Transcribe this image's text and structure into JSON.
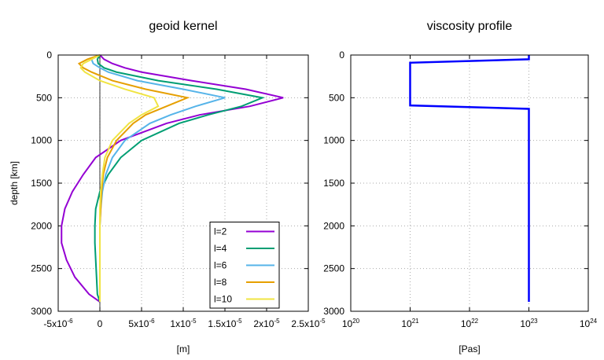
{
  "chart_data": [
    {
      "type": "line",
      "title": "geoid kernel",
      "xlabel": "[m]",
      "ylabel": "depth [km]",
      "y": [
        0,
        50,
        100,
        150,
        200,
        300,
        400,
        500,
        600,
        700,
        800,
        1000,
        1200,
        1400,
        1600,
        1800,
        2000,
        2200,
        2400,
        2600,
        2800,
        2890
      ],
      "series": [
        {
          "name": "l=2",
          "color": "#9400d3",
          "values": [
            0,
            5e-07,
            1.5e-06,
            3e-06,
            5e-06,
            1.1e-05,
            1.75e-05,
            2.2e-05,
            1.8e-05,
            1.2e-05,
            8e-06,
            2.5e-06,
            -5e-07,
            -2e-06,
            -3.3e-06,
            -4.2e-06,
            -4.6e-06,
            -4.6e-06,
            -4e-06,
            -3e-06,
            -1.3e-06,
            0
          ]
        },
        {
          "name": "l=4",
          "color": "#009e73",
          "values": [
            0,
            -3e-07,
            -2e-07,
            5e-07,
            2e-06,
            7e-06,
            1.4e-05,
            1.95e-05,
            1.7e-05,
            1.3e-05,
            9.5e-06,
            5e-06,
            2.5e-06,
            1e-06,
            0,
            -5e-07,
            -6e-07,
            -6e-07,
            -5e-07,
            -4e-07,
            -3e-07,
            0
          ]
        },
        {
          "name": "l=6",
          "color": "#56b4e9",
          "values": [
            0,
            -1e-06,
            -8e-07,
            0,
            1e-06,
            4.5e-06,
            1e-05,
            1.5e-05,
            1.15e-05,
            8.5e-06,
            6e-06,
            3e-06,
            1.5e-06,
            7e-07,
            3e-07,
            1e-07,
            0,
            0,
            0,
            0,
            0,
            0
          ]
        },
        {
          "name": "l=8",
          "color": "#e69f00",
          "values": [
            0,
            -1.5e-06,
            -2.5e-06,
            -2e-06,
            -1e-06,
            1.5e-06,
            5.5e-06,
            1.05e-05,
            8e-06,
            5.5e-06,
            4e-06,
            2e-06,
            9e-07,
            4e-07,
            2e-07,
            1e-07,
            0,
            0,
            0,
            0,
            0,
            0
          ]
        },
        {
          "name": "l=10",
          "color": "#f0e442",
          "values": [
            0,
            -1e-06,
            -2e-06,
            -2.3e-06,
            -1.8e-06,
            0,
            3e-06,
            6.5e-06,
            7e-06,
            5e-06,
            3.5e-06,
            1.5e-06,
            6e-07,
            3e-07,
            1e-07,
            0,
            0,
            0,
            0,
            0,
            0,
            0
          ]
        }
      ],
      "xlim": [
        -5e-06,
        2.5e-05
      ],
      "xticks": [
        {
          "value": -5e-06,
          "label": "-5x10",
          "exponent": "-6"
        },
        0,
        {
          "value": 5e-06,
          "label": "5x10",
          "exponent": "-6"
        },
        {
          "value": 1e-05,
          "label": "1x10",
          "exponent": "-5"
        },
        {
          "value": 1.5e-05,
          "label": "1.5x10",
          "exponent": "-5"
        },
        {
          "value": 2e-05,
          "label": "2x10",
          "exponent": "-5"
        },
        {
          "value": 2.5e-05,
          "label": "2.5x10",
          "exponent": "-5"
        }
      ],
      "ylim": [
        0,
        3000
      ],
      "y_inverted": true,
      "yticks": [
        0,
        500,
        1000,
        1500,
        2000,
        2500,
        3000
      ],
      "grid": true,
      "zero_line": true,
      "legend": "lower right"
    },
    {
      "type": "line",
      "title": "viscosity profile",
      "xlabel": "[Pas]",
      "y": [
        0,
        50,
        90,
        590,
        630,
        2890
      ],
      "series": [
        {
          "color": "#0000ff",
          "values": [
            1e+23,
            1e+23,
            1e+21,
            1e+21,
            1e+23,
            1e+23
          ]
        }
      ],
      "xlim": [
        1e+20,
        1e+24
      ],
      "xlog": true,
      "xticks": [
        {
          "value": 1e+20,
          "label": "10",
          "exponent": "20"
        },
        {
          "value": 1e+21,
          "label": "10",
          "exponent": "21"
        },
        {
          "value": 1e+22,
          "label": "10",
          "exponent": "22"
        },
        {
          "value": 1e+23,
          "label": "10",
          "exponent": "23"
        },
        {
          "value": 1e+24,
          "label": "10",
          "exponent": "24"
        }
      ],
      "ylim": [
        0,
        3000
      ],
      "y_inverted": true,
      "yticks": [
        0,
        500,
        1000,
        1500,
        2000,
        2500,
        3000
      ],
      "grid": true
    }
  ]
}
